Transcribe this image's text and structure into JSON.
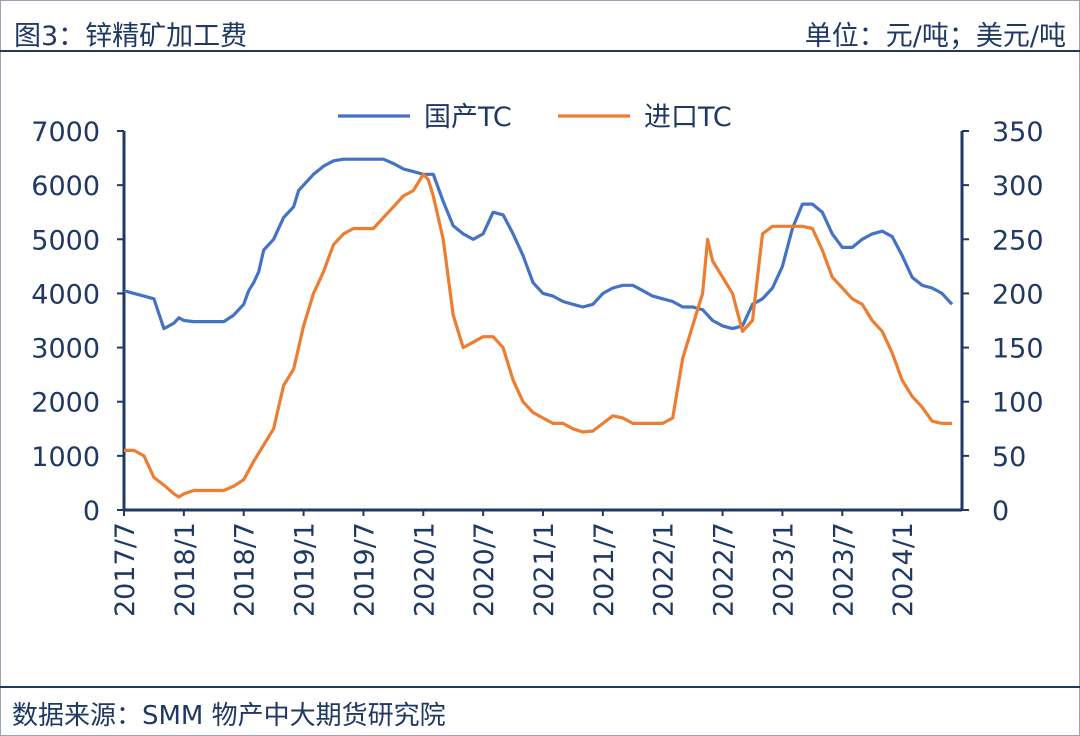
{
  "header": {
    "title": "图3：锌精矿加工费",
    "unit": "单位：元/吨；美元/吨"
  },
  "footer": {
    "source": "数据来源：SMM 物产中大期货研究院"
  },
  "colors": {
    "domestic": "#4472c4",
    "imported": "#ed7d31",
    "axis": "#1f3864",
    "text": "#1f3864"
  },
  "chart_data": {
    "type": "line",
    "title": "锌精矿加工费",
    "x_start": "2017-07",
    "x_end": "2024-04",
    "x_tick_labels": [
      "2017/7",
      "2018/1",
      "2018/7",
      "2019/1",
      "2019/7",
      "2020/1",
      "2020/7",
      "2021/1",
      "2021/7",
      "2022/1",
      "2022/7",
      "2023/1",
      "2023/7",
      "2024/1"
    ],
    "x_tick_positions": [
      0,
      6,
      12,
      18,
      24,
      30,
      36,
      42,
      48,
      54,
      60,
      66,
      72,
      78
    ],
    "y_left": {
      "label": "元/吨",
      "lim": [
        0,
        7000
      ],
      "ticks": [
        0,
        1000,
        2000,
        3000,
        4000,
        5000,
        6000,
        7000
      ]
    },
    "y_right": {
      "label": "美元/吨",
      "lim": [
        0,
        350
      ],
      "ticks": [
        0,
        50,
        100,
        150,
        200,
        250,
        300,
        350
      ]
    },
    "legend": {
      "position": "top-center",
      "entries": [
        "国产TC",
        "进口TC"
      ]
    },
    "series": [
      {
        "name": "国产TC",
        "axis": "left",
        "points": [
          [
            0,
            4050
          ],
          [
            1,
            4000
          ],
          [
            2,
            3950
          ],
          [
            3,
            3900
          ],
          [
            4,
            3350
          ],
          [
            5,
            3450
          ],
          [
            5.5,
            3550
          ],
          [
            6,
            3500
          ],
          [
            7,
            3480
          ],
          [
            8,
            3480
          ],
          [
            9,
            3480
          ],
          [
            10,
            3480
          ],
          [
            11,
            3600
          ],
          [
            12,
            3800
          ],
          [
            12.5,
            4050
          ],
          [
            13,
            4200
          ],
          [
            13.5,
            4400
          ],
          [
            14,
            4800
          ],
          [
            15,
            5000
          ],
          [
            16,
            5400
          ],
          [
            17,
            5600
          ],
          [
            17.5,
            5900
          ],
          [
            18,
            6000
          ],
          [
            19,
            6200
          ],
          [
            20,
            6350
          ],
          [
            21,
            6450
          ],
          [
            22,
            6480
          ],
          [
            23,
            6480
          ],
          [
            24,
            6480
          ],
          [
            25,
            6480
          ],
          [
            26,
            6480
          ],
          [
            27,
            6400
          ],
          [
            28,
            6300
          ],
          [
            29,
            6250
          ],
          [
            30,
            6200
          ],
          [
            31,
            6200
          ],
          [
            32,
            5700
          ],
          [
            33,
            5250
          ],
          [
            34,
            5100
          ],
          [
            35,
            5000
          ],
          [
            36,
            5100
          ],
          [
            37,
            5500
          ],
          [
            38,
            5450
          ],
          [
            39,
            5100
          ],
          [
            40,
            4700
          ],
          [
            41,
            4200
          ],
          [
            42,
            4000
          ],
          [
            43,
            3950
          ],
          [
            44,
            3850
          ],
          [
            45,
            3800
          ],
          [
            46,
            3750
          ],
          [
            47,
            3800
          ],
          [
            48,
            4000
          ],
          [
            49,
            4100
          ],
          [
            50,
            4150
          ],
          [
            51,
            4150
          ],
          [
            52,
            4050
          ],
          [
            53,
            3950
          ],
          [
            54,
            3900
          ],
          [
            55,
            3850
          ],
          [
            56,
            3750
          ],
          [
            57,
            3750
          ],
          [
            58,
            3700
          ],
          [
            59,
            3500
          ],
          [
            60,
            3400
          ],
          [
            61,
            3350
          ],
          [
            62,
            3400
          ],
          [
            63,
            3800
          ],
          [
            64,
            3900
          ],
          [
            65,
            4100
          ],
          [
            66,
            4500
          ],
          [
            67,
            5200
          ],
          [
            68,
            5650
          ],
          [
            69,
            5650
          ],
          [
            70,
            5500
          ],
          [
            71,
            5100
          ],
          [
            72,
            4850
          ],
          [
            73,
            4850
          ],
          [
            74,
            5000
          ],
          [
            75,
            5100
          ],
          [
            76,
            5150
          ],
          [
            77,
            5050
          ],
          [
            78,
            4700
          ],
          [
            79,
            4300
          ],
          [
            80,
            4150
          ],
          [
            81,
            4100
          ],
          [
            82,
            4000
          ],
          [
            83,
            3800
          ]
        ]
      },
      {
        "name": "进口TC",
        "axis": "right",
        "points": [
          [
            0,
            55
          ],
          [
            1,
            55
          ],
          [
            2,
            50
          ],
          [
            3,
            30
          ],
          [
            4,
            23
          ],
          [
            5,
            15
          ],
          [
            5.5,
            12
          ],
          [
            6,
            15
          ],
          [
            7,
            18
          ],
          [
            8,
            18
          ],
          [
            9,
            18
          ],
          [
            10,
            18
          ],
          [
            11,
            22
          ],
          [
            12,
            28
          ],
          [
            13,
            45
          ],
          [
            14,
            60
          ],
          [
            15,
            75
          ],
          [
            16,
            115
          ],
          [
            17,
            130
          ],
          [
            17.5,
            150
          ],
          [
            18,
            170
          ],
          [
            19,
            200
          ],
          [
            20,
            220
          ],
          [
            21,
            245
          ],
          [
            22,
            255
          ],
          [
            23,
            260
          ],
          [
            24,
            260
          ],
          [
            25,
            260
          ],
          [
            26,
            270
          ],
          [
            27,
            280
          ],
          [
            28,
            290
          ],
          [
            29,
            295
          ],
          [
            30,
            310
          ],
          [
            30.5,
            305
          ],
          [
            31,
            290
          ],
          [
            32,
            250
          ],
          [
            33,
            180
          ],
          [
            34,
            150
          ],
          [
            35,
            155
          ],
          [
            36,
            160
          ],
          [
            37,
            160
          ],
          [
            38,
            150
          ],
          [
            39,
            120
          ],
          [
            40,
            100
          ],
          [
            41,
            90
          ],
          [
            42,
            85
          ],
          [
            43,
            80
          ],
          [
            44,
            80
          ],
          [
            45,
            75
          ],
          [
            46,
            72
          ],
          [
            47,
            73
          ],
          [
            48,
            80
          ],
          [
            49,
            87
          ],
          [
            50,
            85
          ],
          [
            51,
            80
          ],
          [
            52,
            80
          ],
          [
            53,
            80
          ],
          [
            54,
            80
          ],
          [
            55,
            85
          ],
          [
            56,
            140
          ],
          [
            57,
            170
          ],
          [
            58,
            200
          ],
          [
            58.5,
            250
          ],
          [
            59,
            230
          ],
          [
            60,
            215
          ],
          [
            61,
            200
          ],
          [
            62,
            165
          ],
          [
            63,
            175
          ],
          [
            64,
            255
          ],
          [
            65,
            262
          ],
          [
            66,
            262
          ],
          [
            67,
            262
          ],
          [
            68,
            262
          ],
          [
            69,
            260
          ],
          [
            70,
            240
          ],
          [
            71,
            215
          ],
          [
            72,
            205
          ],
          [
            73,
            195
          ],
          [
            74,
            190
          ],
          [
            75,
            175
          ],
          [
            76,
            165
          ],
          [
            77,
            145
          ],
          [
            78,
            120
          ],
          [
            79,
            105
          ],
          [
            80,
            95
          ],
          [
            81,
            82
          ],
          [
            82,
            80
          ],
          [
            83,
            80
          ]
        ]
      }
    ]
  }
}
